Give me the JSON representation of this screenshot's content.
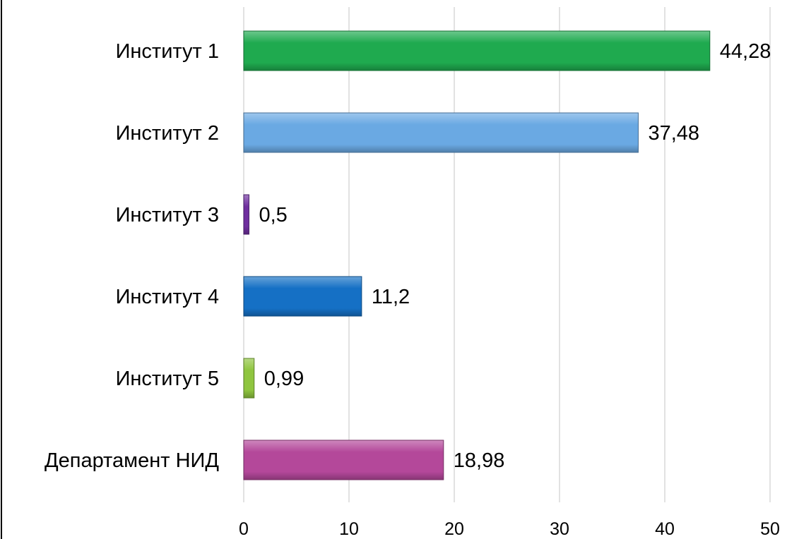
{
  "chart_data": {
    "type": "bar",
    "orientation": "horizontal",
    "title": "",
    "xlabel": "",
    "ylabel": "",
    "xlim": [
      0,
      50
    ],
    "ticks": [
      0,
      10,
      20,
      30,
      40,
      50
    ],
    "tick_labels": [
      "0",
      "10",
      "20",
      "30",
      "40",
      "50"
    ],
    "grid": "vertical",
    "legend": "none",
    "categories": [
      "Институт 1",
      "Институт 2",
      "Институт 3",
      "Институт 4",
      "Институт 5",
      "Департамент НИД"
    ],
    "values": [
      44.28,
      37.48,
      0.5,
      11.2,
      0.99,
      18.98
    ],
    "value_labels": [
      "44,28",
      "37,48",
      "0,5",
      "11,2",
      "0,99",
      "18,98"
    ],
    "colors": [
      "#1faa4f",
      "#6aa9e3",
      "#6f2f9f",
      "#1570c5",
      "#8fc53f",
      "#b4489a"
    ]
  }
}
